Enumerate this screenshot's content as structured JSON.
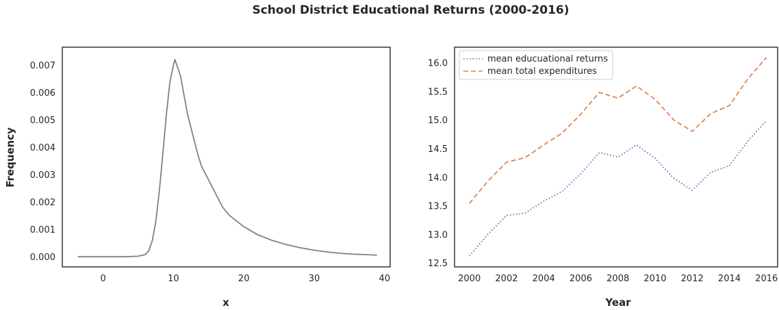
{
  "figure_title": "School District Educational Returns (2000-2016)",
  "colors": {
    "histogram_line": "#808080",
    "returns_line": "#4c72b0",
    "expenditures_line": "#dd8452",
    "axes_frame": "#262626"
  },
  "chart_data": [
    {
      "type": "line",
      "title": "",
      "xlabel": "x",
      "ylabel": "Frequency",
      "xlim": [
        -5.8,
        40.8
      ],
      "ylim": [
        -0.00037,
        0.00765
      ],
      "x_ticks": [
        0,
        10,
        20,
        30,
        40
      ],
      "y_ticks": [
        0.0,
        0.001,
        0.002,
        0.003,
        0.004,
        0.005,
        0.006,
        0.007
      ],
      "y_tick_labels": [
        "0.000",
        "0.001",
        "0.002",
        "0.003",
        "0.004",
        "0.005",
        "0.006",
        "0.007"
      ],
      "grid": false,
      "series": [
        {
          "x": [
            -3.6,
            0,
            3,
            5,
            6,
            6.5,
            7,
            7.5,
            8,
            8.5,
            9,
            9.5,
            10,
            10.2,
            10.6,
            11,
            11.5,
            12,
            12.5,
            13,
            13.5,
            14,
            15,
            16,
            17,
            18,
            20,
            22,
            24,
            26,
            28,
            30,
            32,
            34,
            36,
            38,
            38.9
          ],
          "y": [
            0.0,
            0.0,
            0.0,
            2e-05,
            8e-05,
            0.00022,
            0.0006,
            0.0013,
            0.0024,
            0.0038,
            0.0052,
            0.0064,
            0.007,
            0.0072,
            0.0069,
            0.0066,
            0.0059,
            0.0052,
            0.0047,
            0.0042,
            0.0037,
            0.0033,
            0.0028,
            0.0023,
            0.0018,
            0.0015,
            0.0011,
            0.0008,
            0.0006,
            0.00045,
            0.00033,
            0.00024,
            0.00017,
            0.00012,
            9e-05,
            7e-05,
            6e-05
          ]
        }
      ]
    },
    {
      "type": "line",
      "title": "",
      "xlabel": "Year",
      "ylabel": "",
      "xlim": [
        1999.2,
        2016.6
      ],
      "ylim": [
        12.43,
        16.27
      ],
      "x_ticks": [
        2000,
        2002,
        2004,
        2006,
        2008,
        2010,
        2012,
        2014,
        2016
      ],
      "y_ticks": [
        12.5,
        13.0,
        13.5,
        14.0,
        14.5,
        15.0,
        15.5,
        16.0
      ],
      "y_tick_labels": [
        "12.5",
        "13.0",
        "13.5",
        "14.0",
        "14.5",
        "15.0",
        "15.5",
        "16.0"
      ],
      "grid": false,
      "legend_position": "top-left",
      "x": [
        2000,
        2001,
        2002,
        2003,
        2004,
        2005,
        2006,
        2007,
        2008,
        2009,
        2010,
        2011,
        2012,
        2013,
        2014,
        2015,
        2016
      ],
      "series": [
        {
          "name": "mean educuational returns",
          "style": "dotted",
          "values": [
            12.62,
            13.0,
            13.33,
            13.37,
            13.58,
            13.75,
            14.06,
            14.43,
            14.35,
            14.56,
            14.33,
            13.98,
            13.77,
            14.08,
            14.2,
            14.63,
            14.99
          ]
        },
        {
          "name": "mean total expenditures",
          "style": "dashed",
          "values": [
            13.54,
            13.93,
            14.26,
            14.34,
            14.56,
            14.77,
            15.1,
            15.48,
            15.38,
            15.59,
            15.36,
            15.0,
            14.8,
            15.11,
            15.25,
            15.72,
            16.09
          ]
        }
      ]
    }
  ]
}
